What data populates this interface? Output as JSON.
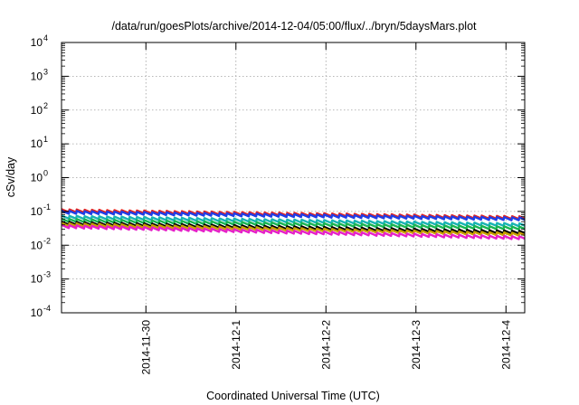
{
  "chart_data": {
    "type": "line",
    "title": "/data/run/goesPlots/archive/2014-12-04/05:00/flux/../bryn/5daysMars.plot",
    "xlabel": "Coordinated Universal Time (UTC)",
    "ylabel": "cSv/day",
    "yscale": "log",
    "ylim": [
      0.0001,
      10000
    ],
    "xlim": [
      "2014-11-29T01:30",
      "2014-12-04T05:00"
    ],
    "grid": true,
    "legend": "none",
    "y_ticks": [
      {
        "value": 0.0001,
        "base": "10",
        "exp": "-4"
      },
      {
        "value": 0.001,
        "base": "10",
        "exp": "-3"
      },
      {
        "value": 0.01,
        "base": "10",
        "exp": "-2"
      },
      {
        "value": 0.1,
        "base": "10",
        "exp": "-1"
      },
      {
        "value": 1,
        "base": "10",
        "exp": "0"
      },
      {
        "value": 10,
        "base": "10",
        "exp": "1"
      },
      {
        "value": 100,
        "base": "10",
        "exp": "2"
      },
      {
        "value": 1000,
        "base": "10",
        "exp": "3"
      },
      {
        "value": 10000,
        "base": "10",
        "exp": "4"
      }
    ],
    "x_ticks": [
      {
        "value": "2014-11-30T00:00",
        "label": "2014-11-30"
      },
      {
        "value": "2014-12-01T00:00",
        "label": "2014-12-1"
      },
      {
        "value": "2014-12-02T00:00",
        "label": "2014-12-2"
      },
      {
        "value": "2014-12-03T00:00",
        "label": "2014-12-3"
      },
      {
        "value": "2014-12-04T00:00",
        "label": "2014-12-4"
      }
    ],
    "sawtooth_period_hours": 2,
    "series": [
      {
        "color": "#e6231f",
        "start": 0.105,
        "end": 0.065
      },
      {
        "color": "#1f3de6",
        "start": 0.095,
        "end": 0.06
      },
      {
        "color": "#18b4b4",
        "start": 0.068,
        "end": 0.04
      },
      {
        "color": "#18b452",
        "start": 0.055,
        "end": 0.032
      },
      {
        "color": "#000000",
        "start": 0.045,
        "end": 0.024
      },
      {
        "color": "#c8a000",
        "start": 0.041,
        "end": 0.021
      },
      {
        "color": "#e620c8",
        "start": 0.036,
        "end": 0.0165
      }
    ]
  }
}
